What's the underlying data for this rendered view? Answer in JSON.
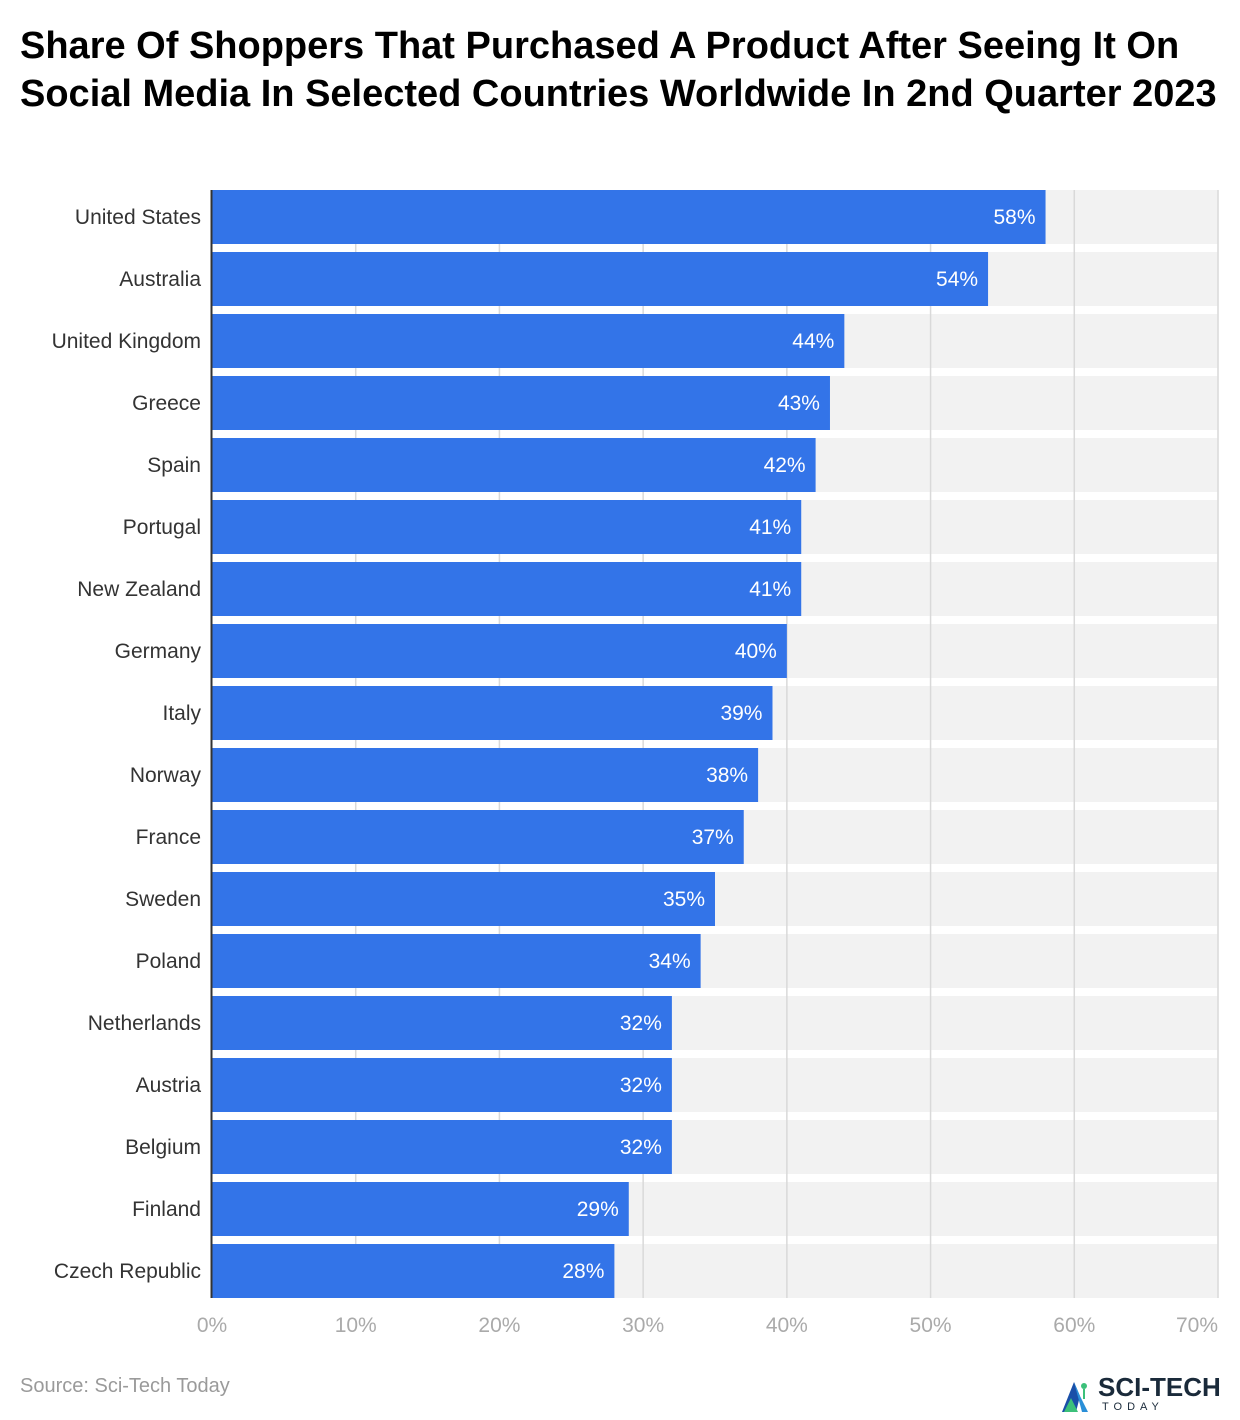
{
  "title": "Share Of Shoppers That Purchased A Product After Seeing It On Social Media In Selected Countries Worldwide In 2nd Quarter 2023",
  "source": "Source: Sci-Tech Today",
  "logo": {
    "name": "SCI-TECH",
    "tagline": "TODAY"
  },
  "colors": {
    "bar": "#3374e8",
    "track": "#f2f2f2",
    "grid": "#d9d9d9",
    "bar_label": "#ffffff",
    "category_label": "#333333",
    "tick_label": "#aaaaaa",
    "axis": "#333333"
  },
  "chart_data": {
    "type": "bar",
    "orientation": "horizontal",
    "title": "Share Of Shoppers That Purchased A Product After Seeing It On Social Media In Selected Countries Worldwide In 2nd Quarter 2023",
    "categories": [
      "United States",
      "Australia",
      "United Kingdom",
      "Greece",
      "Spain",
      "Portugal",
      "New Zealand",
      "Germany",
      "Italy",
      "Norway",
      "France",
      "Sweden",
      "Poland",
      "Netherlands",
      "Austria",
      "Belgium",
      "Finland",
      "Czech Republic"
    ],
    "values": [
      58,
      54,
      44,
      43,
      42,
      41,
      41,
      40,
      39,
      38,
      37,
      35,
      34,
      32,
      32,
      32,
      29,
      28
    ],
    "value_labels": [
      "58%",
      "54%",
      "44%",
      "43%",
      "42%",
      "41%",
      "41%",
      "40%",
      "39%",
      "38%",
      "37%",
      "35%",
      "34%",
      "32%",
      "32%",
      "32%",
      "29%",
      "28%"
    ],
    "xlim": [
      0,
      70
    ],
    "xticks": [
      0,
      10,
      20,
      30,
      40,
      50,
      60,
      70
    ],
    "xtick_labels": [
      "0%",
      "10%",
      "20%",
      "30%",
      "40%",
      "50%",
      "60%",
      "70%"
    ],
    "xlabel": "",
    "ylabel": "",
    "grid": true,
    "legend": "none"
  }
}
